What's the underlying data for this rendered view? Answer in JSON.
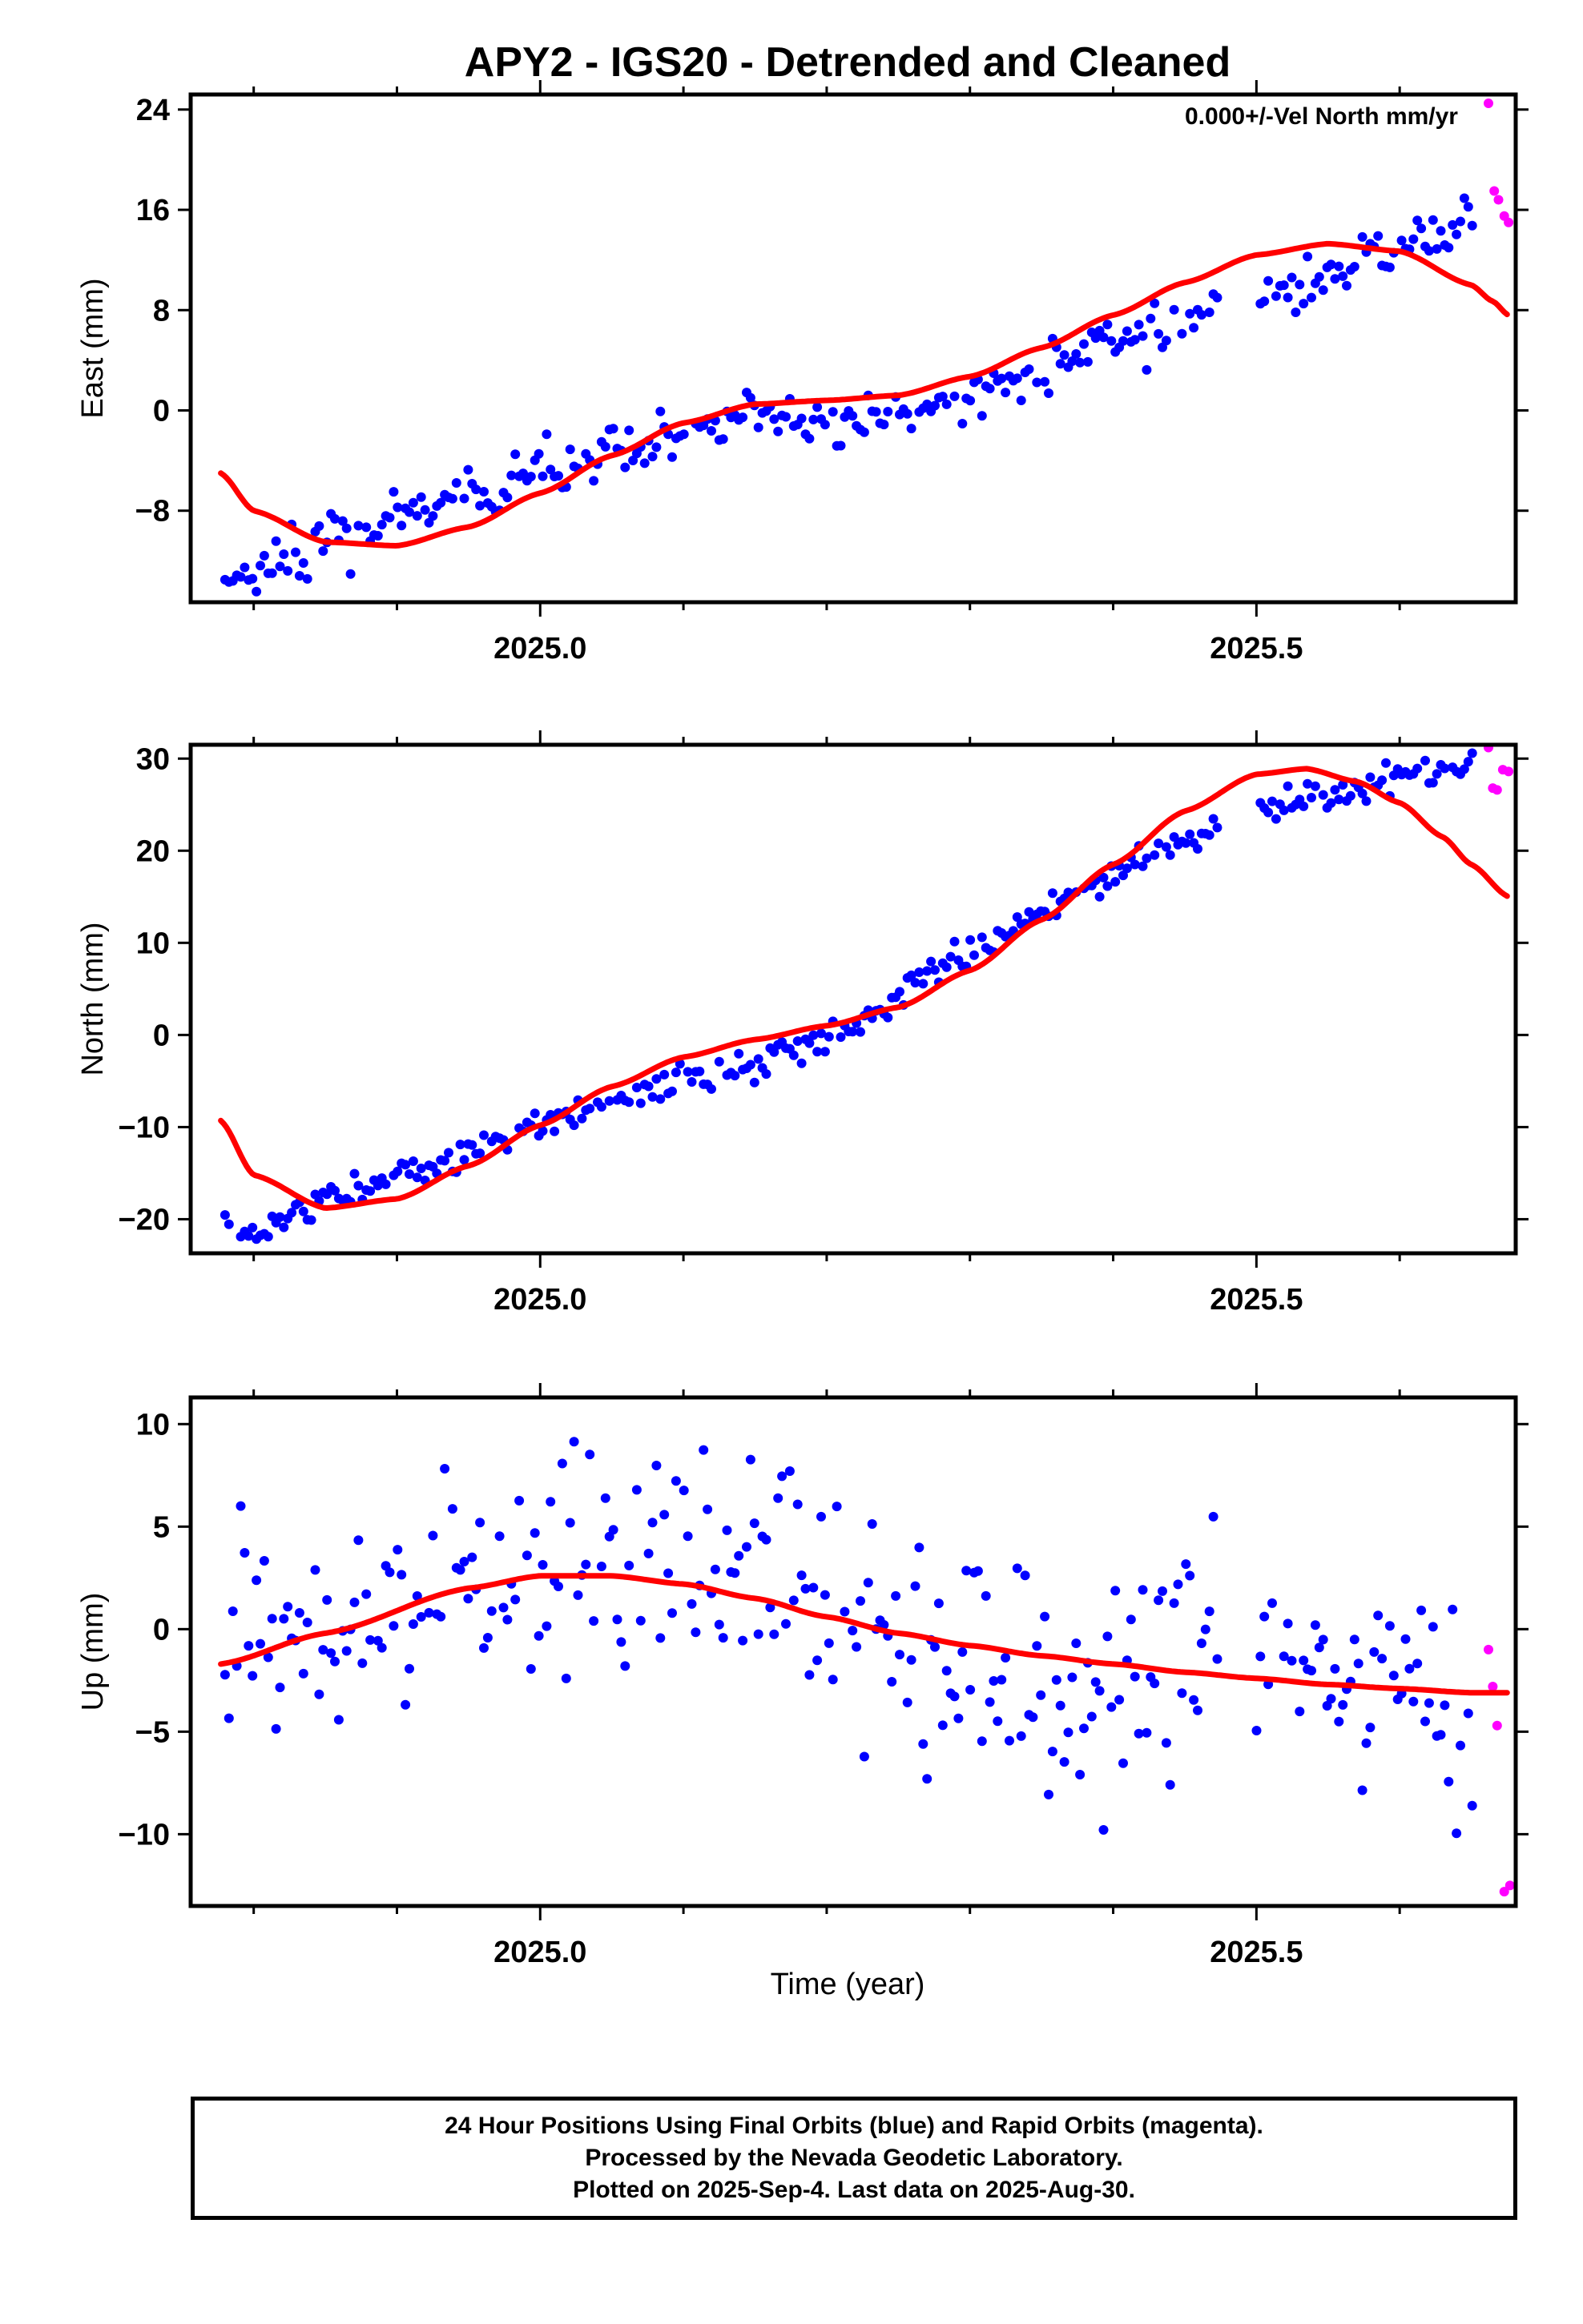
{
  "title": "APY2 - IGS20 - Detrended and Cleaned",
  "xlabel": "Time (year)",
  "colors": {
    "final": "#0000ff",
    "rapid": "#ff00ff",
    "model": "#ff0000",
    "frame": "#000000"
  },
  "footer": {
    "line1": "24 Hour Positions Using Final Orbits (blue) and Rapid Orbits (magenta).",
    "line2": "Processed by the Nevada Geodetic Laboratory.",
    "line3": "Plotted on 2025-Sep-4. Last data on 2025-Aug-30."
  },
  "chart_data": [
    {
      "type": "scatter",
      "ylabel": "East (mm)",
      "annotation": "0.000+/-Vel North mm/yr",
      "xlim": [
        2024.756,
        2025.681
      ],
      "ylim": [
        -15.3,
        25.2
      ],
      "x_ticks": [
        2025.0,
        2025.5
      ],
      "x_tick_labels": [
        "2025.0",
        "2025.5"
      ],
      "x_minor_ticks": [
        2024.8,
        2024.9,
        2025.1,
        2025.2,
        2025.3,
        2025.4,
        2025.6
      ],
      "y_ticks": [
        24,
        16,
        8,
        0,
        -8
      ],
      "y_tick_labels": [
        "24",
        "16",
        "8",
        "0",
        "−8"
      ],
      "final_anchor": {
        "t": [
          2024.78,
          2024.8,
          2024.83,
          2024.86,
          2024.9,
          2024.95,
          2025.0,
          2025.05,
          2025.1,
          2025.15,
          2025.2,
          2025.25,
          2025.3,
          2025.35,
          2025.4,
          2025.45,
          2025.47,
          2025.5,
          2025.55,
          2025.6,
          2025.64,
          2025.65
        ],
        "y": [
          -13.5,
          -13.3,
          -11.0,
          -9.7,
          -8.3,
          -7.2,
          -5.2,
          -3.8,
          -2.3,
          0.0,
          -1.2,
          -0.5,
          1.5,
          3.5,
          5.2,
          7.0,
          8.6,
          8.5,
          11.0,
          12.8,
          14.8,
          15.2
        ]
      },
      "final_range": [
        2024.78,
        2025.651
      ],
      "final_gap": [
        2025.475,
        2025.498
      ],
      "final_noise": 1.1,
      "rapid": {
        "t": [
          2025.662,
          2025.666,
          2025.669,
          2025.673,
          2025.676
        ],
        "y": [
          24.5,
          17.5,
          16.8,
          15.5,
          15.0
        ]
      },
      "model": {
        "t": [
          2024.777,
          2024.8,
          2024.85,
          2024.9,
          2024.95,
          2025.0,
          2025.05,
          2025.1,
          2025.15,
          2025.2,
          2025.25,
          2025.3,
          2025.35,
          2025.4,
          2025.45,
          2025.5,
          2025.55,
          2025.6,
          2025.65,
          2025.665,
          2025.676
        ],
        "y": [
          -5.0,
          -8.0,
          -10.5,
          -10.8,
          -9.3,
          -6.6,
          -3.6,
          -1.0,
          0.5,
          0.8,
          1.2,
          2.7,
          5.0,
          7.6,
          10.2,
          12.4,
          13.3,
          12.7,
          10.0,
          8.7,
          7.6
        ]
      }
    },
    {
      "type": "scatter",
      "ylabel": "North (mm)",
      "xlim": [
        2024.756,
        2025.681
      ],
      "ylim": [
        -23.7,
        31.5
      ],
      "x_ticks": [
        2025.0,
        2025.5
      ],
      "x_tick_labels": [
        "2025.0",
        "2025.5"
      ],
      "x_minor_ticks": [
        2024.8,
        2024.9,
        2025.1,
        2025.2,
        2025.3,
        2025.4,
        2025.6
      ],
      "y_ticks": [
        30,
        20,
        10,
        0,
        -10,
        -20
      ],
      "y_tick_labels": [
        "30",
        "20",
        "10",
        "0",
        "−10",
        "−20"
      ],
      "final_anchor": {
        "t": [
          2024.78,
          2024.8,
          2024.85,
          2024.9,
          2024.95,
          2025.0,
          2025.05,
          2025.1,
          2025.15,
          2025.2,
          2025.25,
          2025.3,
          2025.35,
          2025.4,
          2025.45,
          2025.47,
          2025.5,
          2025.55,
          2025.6,
          2025.651
        ],
        "y": [
          -21.0,
          -21.5,
          -17.8,
          -15.2,
          -12.5,
          -9.5,
          -7.0,
          -5.3,
          -3.0,
          0.0,
          4.0,
          8.7,
          13.7,
          17.3,
          21.3,
          22.2,
          24.3,
          26.5,
          27.5,
          29.5
        ]
      },
      "final_range": [
        2024.78,
        2025.651
      ],
      "final_gap": [
        2025.475,
        2025.498
      ],
      "final_noise": 0.9,
      "rapid": {
        "t": [
          2025.662,
          2025.665,
          2025.668,
          2025.672,
          2025.676
        ],
        "y": [
          31.2,
          26.8,
          26.6,
          28.8,
          28.6
        ]
      },
      "model": {
        "t": [
          2024.777,
          2024.8,
          2024.85,
          2024.9,
          2024.95,
          2025.0,
          2025.05,
          2025.1,
          2025.15,
          2025.2,
          2025.25,
          2025.3,
          2025.35,
          2025.4,
          2025.45,
          2025.5,
          2025.535,
          2025.57,
          2025.6,
          2025.63,
          2025.65,
          2025.676
        ],
        "y": [
          -9.3,
          -15.2,
          -18.8,
          -17.8,
          -14.2,
          -9.8,
          -5.6,
          -2.4,
          -0.5,
          1.0,
          3.0,
          7.0,
          12.5,
          18.5,
          24.3,
          28.3,
          28.9,
          27.5,
          25.2,
          21.5,
          18.5,
          15.0
        ]
      }
    },
    {
      "type": "scatter",
      "ylabel": "Up (mm)",
      "xlim": [
        2024.756,
        2025.681
      ],
      "ylim": [
        -13.5,
        11.3
      ],
      "x_ticks": [
        2025.0,
        2025.5
      ],
      "x_tick_labels": [
        "2025.0",
        "2025.5"
      ],
      "x_minor_ticks": [
        2024.8,
        2024.9,
        2025.1,
        2025.2,
        2025.3,
        2025.4,
        2025.6
      ],
      "y_ticks": [
        10,
        5,
        0,
        -5,
        -10
      ],
      "y_tick_labels": [
        "10",
        "5",
        "0",
        "−5",
        "−10"
      ],
      "final_anchor": {
        "t": [
          2024.78,
          2024.85,
          2024.9,
          2024.95,
          2025.0,
          2025.05,
          2025.1,
          2025.15,
          2025.2,
          2025.25,
          2025.3,
          2025.35,
          2025.4,
          2025.45,
          2025.5,
          2025.55,
          2025.6,
          2025.651
        ],
        "y": [
          -0.5,
          0.8,
          1.2,
          2.0,
          3.0,
          3.0,
          3.0,
          2.5,
          1.5,
          -1.0,
          -1.5,
          -2.5,
          -1.5,
          -1.5,
          -1.5,
          -1.5,
          -3.0,
          -4.5
        ]
      },
      "final_range": [
        2024.78,
        2025.651
      ],
      "final_gap": [
        2025.475,
        2025.498
      ],
      "final_noise": 3.0,
      "rapid": {
        "t": [
          2025.662,
          2025.665,
          2025.668,
          2025.673,
          2025.677
        ],
        "y": [
          -1.0,
          -2.8,
          -4.7,
          -12.8,
          -12.5
        ]
      },
      "model": {
        "t": [
          2024.777,
          2024.85,
          2024.95,
          2025.0,
          2025.05,
          2025.1,
          2025.15,
          2025.2,
          2025.25,
          2025.3,
          2025.35,
          2025.4,
          2025.45,
          2025.5,
          2025.55,
          2025.6,
          2025.65,
          2025.676
        ],
        "y": [
          -1.7,
          -0.2,
          2.0,
          2.6,
          2.6,
          2.2,
          1.5,
          0.6,
          -0.2,
          -0.8,
          -1.3,
          -1.7,
          -2.1,
          -2.4,
          -2.7,
          -2.9,
          -3.1,
          -3.1
        ]
      }
    }
  ]
}
